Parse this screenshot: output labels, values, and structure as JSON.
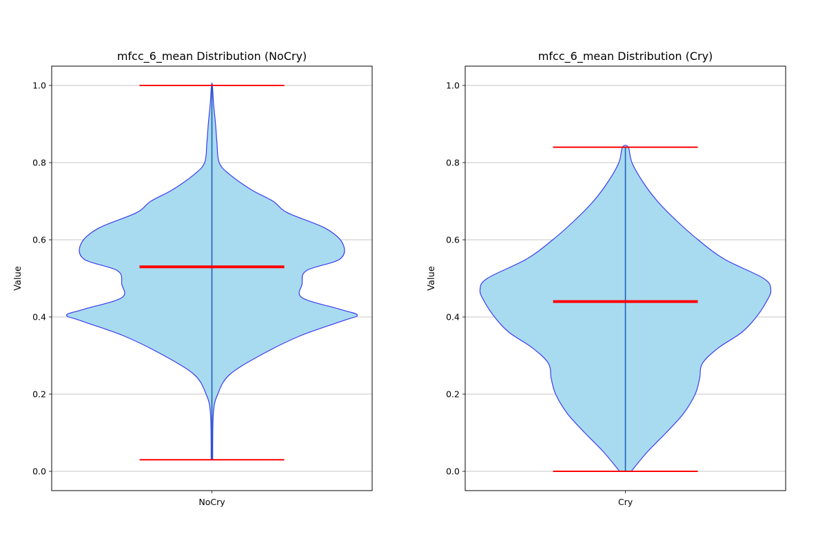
{
  "chart_data": [
    {
      "type": "violin",
      "title": "mfcc_6_mean Distribution (NoCry)",
      "xlabel": "",
      "ylabel": "Value",
      "categories": [
        "NoCry"
      ],
      "ylim": [
        -0.05,
        1.05
      ],
      "yticks": [
        "0.0",
        "0.2",
        "0.4",
        "0.6",
        "0.8",
        "1.0"
      ],
      "grid": "y",
      "min": 0.03,
      "max": 1.0,
      "median": 0.53,
      "density_profile": [
        [
          0.03,
          0.005
        ],
        [
          0.15,
          0.01
        ],
        [
          0.2,
          0.04
        ],
        [
          0.25,
          0.12
        ],
        [
          0.3,
          0.33
        ],
        [
          0.35,
          0.6
        ],
        [
          0.39,
          0.9
        ],
        [
          0.405,
          1.0
        ],
        [
          0.42,
          0.88
        ],
        [
          0.45,
          0.62
        ],
        [
          0.485,
          0.62
        ],
        [
          0.52,
          0.65
        ],
        [
          0.55,
          0.88
        ],
        [
          0.59,
          0.9
        ],
        [
          0.63,
          0.78
        ],
        [
          0.67,
          0.52
        ],
        [
          0.7,
          0.42
        ],
        [
          0.73,
          0.27
        ],
        [
          0.77,
          0.12
        ],
        [
          0.8,
          0.05
        ],
        [
          0.85,
          0.035
        ],
        [
          0.9,
          0.025
        ],
        [
          0.95,
          0.012
        ],
        [
          1.0,
          0.003
        ]
      ]
    },
    {
      "type": "violin",
      "title": "mfcc_6_mean Distribution (Cry)",
      "xlabel": "",
      "ylabel": "Value",
      "categories": [
        "Cry"
      ],
      "ylim": [
        -0.05,
        1.05
      ],
      "yticks": [
        "0.0",
        "0.2",
        "0.4",
        "0.6",
        "0.8",
        "1.0"
      ],
      "grid": "y",
      "min": 0.0,
      "max": 0.84,
      "median": 0.44,
      "density_profile": [
        [
          0.0,
          0.04
        ],
        [
          0.05,
          0.15
        ],
        [
          0.1,
          0.28
        ],
        [
          0.15,
          0.4
        ],
        [
          0.2,
          0.48
        ],
        [
          0.24,
          0.51
        ],
        [
          0.28,
          0.53
        ],
        [
          0.32,
          0.64
        ],
        [
          0.36,
          0.8
        ],
        [
          0.4,
          0.9
        ],
        [
          0.44,
          0.97
        ],
        [
          0.47,
          1.0
        ],
        [
          0.5,
          0.95
        ],
        [
          0.55,
          0.68
        ],
        [
          0.6,
          0.5
        ],
        [
          0.65,
          0.35
        ],
        [
          0.7,
          0.22
        ],
        [
          0.75,
          0.12
        ],
        [
          0.8,
          0.045
        ],
        [
          0.84,
          0.02
        ]
      ]
    }
  ],
  "colors": {
    "violin_fill": "#a8dbef",
    "violin_edge": "#3a3af0",
    "center_line": "#1f5fb8",
    "stat_lines": "#ff0000",
    "grid": "#b0b0b0"
  }
}
